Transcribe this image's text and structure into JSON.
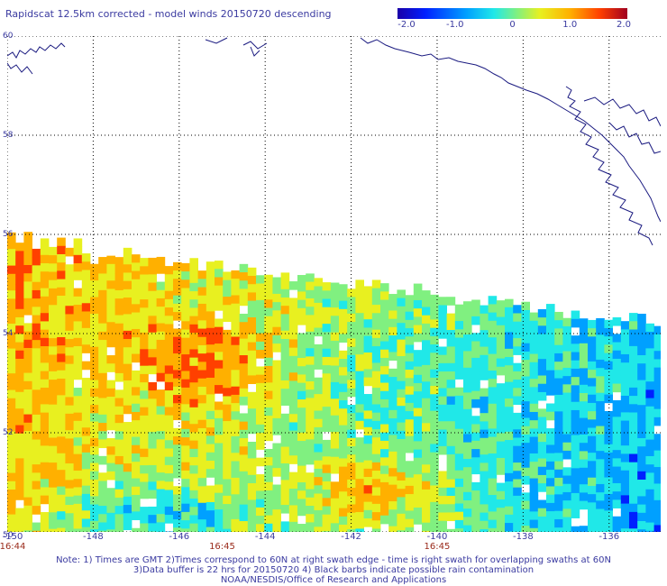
{
  "title": "Rapidscat 12.5km corrected - model winds 20150720 descending",
  "colorbar": {
    "ticks": [
      "-2.0",
      "-1.0",
      "0",
      "1.0",
      "2.0"
    ],
    "tick_values": [
      -2.0,
      -1.0,
      0,
      1.0,
      2.0
    ],
    "range": [
      -2.0,
      2.0
    ],
    "colors": [
      "#1a00a8",
      "#0020ff",
      "#00a0ff",
      "#20e8e8",
      "#80f080",
      "#e8f020",
      "#ffb000",
      "#ff4000",
      "#c00000",
      "#a00020"
    ]
  },
  "map": {
    "lat_range": [
      50,
      60
    ],
    "lon_range": [
      -150,
      -134.8
    ],
    "lat_labels": [
      "50",
      "52",
      "54",
      "56",
      "58",
      "60"
    ],
    "lat_values": [
      50,
      52,
      54,
      56,
      58,
      60
    ],
    "lon_labels": [
      "-150",
      "-148",
      "-146",
      "-144",
      "-142",
      "-140",
      "-138",
      "-136"
    ],
    "lon_values": [
      -150,
      -148,
      -146,
      -144,
      -142,
      -140,
      -138,
      -136
    ],
    "coastline_color": "#1a1a80",
    "grid": "dotted"
  },
  "times": [
    {
      "label": "16:44",
      "lon": -150
    },
    {
      "label": "16:45",
      "lon": -145
    },
    {
      "label": "16:45",
      "lon": -140
    }
  ],
  "notes": {
    "line1": "Note: 1) Times are GMT 2)Times correspond to 60N at right swath edge - time is right swath for overlapping swaths at 60N",
    "line2": "3)Data buffer is 22 hrs for 20150720 4) Black barbs indicate possible rain contamination",
    "line3": "NOAA/NESDIS/Office of Research and Applications"
  }
}
